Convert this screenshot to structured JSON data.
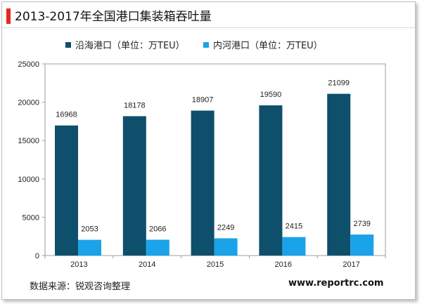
{
  "title": "2013-2017年全国港口集装箱吞吐量",
  "source": "数据来源：锐观咨询整理",
  "watermark": "www.reportrc.com",
  "colors": {
    "accent": "#e02b20",
    "coastal": "#0e4f6b",
    "inland": "#1aa3e8"
  },
  "chart_data": {
    "type": "bar",
    "categories": [
      "2013",
      "2014",
      "2015",
      "2016",
      "2017"
    ],
    "series": [
      {
        "name": "沿海港口（单位：万TEU）",
        "values": [
          16968,
          18178,
          18907,
          19590,
          21099
        ]
      },
      {
        "name": "内河港口（单位：万TEU）",
        "values": [
          2053,
          2066,
          2249,
          2415,
          2739
        ]
      }
    ],
    "ylim": [
      0,
      25000
    ],
    "yticks": [
      0,
      5000,
      10000,
      15000,
      20000,
      25000
    ],
    "grid": false,
    "legend": "top"
  }
}
